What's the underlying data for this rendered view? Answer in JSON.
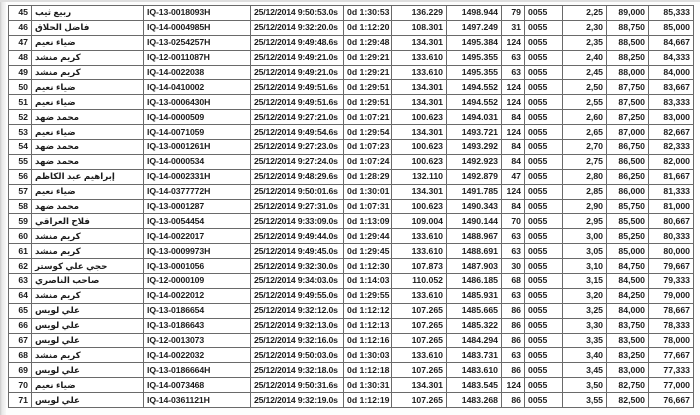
{
  "colors": {
    "grid_line": "#6a6a6a",
    "number_text": "#1c1c1c",
    "name_text": "#44302a",
    "background": "#ffffff"
  },
  "table": {
    "rows": [
      [
        "45",
        "ربيع ثيب",
        "IQ-13-0018093H",
        "25/12/2014 9:50:53.0s",
        "0d 1:30:53",
        "136.229",
        "1498.944",
        "79",
        "0055",
        "2,25",
        "89,000",
        "85,333"
      ],
      [
        "46",
        "فاضل الحلاق",
        "IQ-14-0004985H",
        "25/12/2014 9:32:20.0s",
        "0d 1:12:20",
        "108.301",
        "1497.249",
        "31",
        "0055",
        "2,30",
        "88,750",
        "85,000"
      ],
      [
        "47",
        "ضياء نعيم",
        "IQ-13-0254257H",
        "25/12/2014 9:49:48.6s",
        "0d 1:29:48",
        "134.301",
        "1495.384",
        "124",
        "0055",
        "2,35",
        "88,500",
        "84,667"
      ],
      [
        "48",
        "كريم منشد",
        "IQ-12-0011087H",
        "25/12/2014 9:49:21.0s",
        "0d 1:29:21",
        "133.610",
        "1495.355",
        "63",
        "0055",
        "2,40",
        "88,250",
        "84,333"
      ],
      [
        "49",
        "كريم منشد",
        "IQ-14-0022038",
        "25/12/2014 9:49:21.0s",
        "0d 1:29:21",
        "133.610",
        "1495.355",
        "63",
        "0055",
        "2,45",
        "88,000",
        "84,000"
      ],
      [
        "50",
        "ضياء نعيم",
        "IQ-14-0410002",
        "25/12/2014 9:49:51.6s",
        "0d 1:29:51",
        "134.301",
        "1494.552",
        "124",
        "0055",
        "2,50",
        "87,750",
        "83,667"
      ],
      [
        "51",
        "ضياء نعيم",
        "IQ-13-0006430H",
        "25/12/2014 9:49:51.6s",
        "0d 1:29:51",
        "134.301",
        "1494.552",
        "124",
        "0055",
        "2,55",
        "87,500",
        "83,333"
      ],
      [
        "52",
        "محمد ضهد",
        "IQ-14-0000509",
        "25/12/2014 9:27:21.0s",
        "0d 1:07:21",
        "100.623",
        "1494.031",
        "84",
        "0055",
        "2,60",
        "87,250",
        "83,000"
      ],
      [
        "53",
        "ضياء نعيم",
        "IQ-14-0071059",
        "25/12/2014 9:49:54.6s",
        "0d 1:29:54",
        "134.301",
        "1493.721",
        "124",
        "0055",
        "2,65",
        "87,000",
        "82,667"
      ],
      [
        "54",
        "محمد ضهد",
        "IQ-13-0001261H",
        "25/12/2014 9:27:23.0s",
        "0d 1:07:23",
        "100.623",
        "1493.292",
        "84",
        "0055",
        "2,70",
        "86,750",
        "82,333"
      ],
      [
        "55",
        "محمد ضهد",
        "IQ-14-0000534",
        "25/12/2014 9:27:24.0s",
        "0d 1:07:24",
        "100.623",
        "1492.923",
        "84",
        "0055",
        "2,75",
        "86,500",
        "82,000"
      ],
      [
        "56",
        "إبراهيم عبد الكاظم",
        "IQ-14-0002331H",
        "25/12/2014 9:48:29.6s",
        "0d 1:28:29",
        "132.110",
        "1492.879",
        "47",
        "0055",
        "2,80",
        "86,250",
        "81,667"
      ],
      [
        "57",
        "ضياء نعيم",
        "IQ-14-0377772H",
        "25/12/2014 9:50:01.6s",
        "0d 1:30:01",
        "134.301",
        "1491.785",
        "124",
        "0055",
        "2,85",
        "86,000",
        "81,333"
      ],
      [
        "58",
        "محمد ضهد",
        "IQ-13-0001287",
        "25/12/2014 9:27:31.0s",
        "0d 1:07:31",
        "100.623",
        "1490.343",
        "84",
        "0055",
        "2,90",
        "85,750",
        "81,000"
      ],
      [
        "59",
        "فلاح العراقي",
        "IQ-13-0054454",
        "25/12/2014 9:33:09.0s",
        "0d 1:13:09",
        "109.004",
        "1490.144",
        "70",
        "0055",
        "2,95",
        "85,500",
        "80,667"
      ],
      [
        "60",
        "كريم منشد",
        "IQ-14-0022017",
        "25/12/2014 9:49:44.0s",
        "0d 1:29:44",
        "133.610",
        "1488.967",
        "63",
        "0055",
        "3,00",
        "85,250",
        "80,333"
      ],
      [
        "61",
        "كريم منشد",
        "IQ-13-0009973H",
        "25/12/2014 9:49:45.0s",
        "0d 1:29:45",
        "133.610",
        "1488.691",
        "63",
        "0055",
        "3,05",
        "85,000",
        "80,000"
      ],
      [
        "62",
        "حجي علي كوستر",
        "IQ-13-0001056",
        "25/12/2014 9:32:30.0s",
        "0d 1:12:30",
        "107.873",
        "1487.903",
        "30",
        "0055",
        "3,10",
        "84,750",
        "79,667"
      ],
      [
        "63",
        "صاحب الناصري",
        "IQ-12-0000109",
        "25/12/2014 9:34:03.0s",
        "0d 1:14:03",
        "110.052",
        "1486.185",
        "68",
        "0055",
        "3,15",
        "84,500",
        "79,333"
      ],
      [
        "64",
        "كريم منشد",
        "IQ-14-0022012",
        "25/12/2014 9:49:55.0s",
        "0d 1:29:55",
        "133.610",
        "1485.931",
        "63",
        "0055",
        "3,20",
        "84,250",
        "79,000"
      ],
      [
        "65",
        "علي لويس",
        "IQ-13-0186654",
        "25/12/2014 9:32:12.0s",
        "0d 1:12:12",
        "107.265",
        "1485.665",
        "86",
        "0055",
        "3,25",
        "84,000",
        "78,667"
      ],
      [
        "66",
        "علي لويس",
        "IQ-13-0186643",
        "25/12/2014 9:32:13.0s",
        "0d 1:12:13",
        "107.265",
        "1485.322",
        "86",
        "0055",
        "3,30",
        "83,750",
        "78,333"
      ],
      [
        "67",
        "علي لويس",
        "IQ-12-0013073",
        "25/12/2014 9:32:16.0s",
        "0d 1:12:16",
        "107.265",
        "1484.294",
        "86",
        "0055",
        "3,35",
        "83,500",
        "78,000"
      ],
      [
        "68",
        "كريم منشد",
        "IQ-14-0022032",
        "25/12/2014 9:50:03.0s",
        "0d 1:30:03",
        "133.610",
        "1483.731",
        "63",
        "0055",
        "3,40",
        "83,250",
        "77,667"
      ],
      [
        "69",
        "علي لويس",
        "IQ-13-0186664H",
        "25/12/2014 9:32:18.0s",
        "0d 1:12:18",
        "107.265",
        "1483.610",
        "86",
        "0055",
        "3,45",
        "83,000",
        "77,333"
      ],
      [
        "70",
        "ضياء نعيم",
        "IQ-14-0073468",
        "25/12/2014 9:50:31.6s",
        "0d 1:30:31",
        "134.301",
        "1483.545",
        "124",
        "0055",
        "3,50",
        "82,750",
        "77,000"
      ],
      [
        "71",
        "علي لويس",
        "IQ-14-0361121H",
        "25/12/2014 9:32:19.0s",
        "0d 1:12:19",
        "107.265",
        "1483.268",
        "86",
        "0055",
        "3,55",
        "82,500",
        "76,667"
      ]
    ]
  }
}
